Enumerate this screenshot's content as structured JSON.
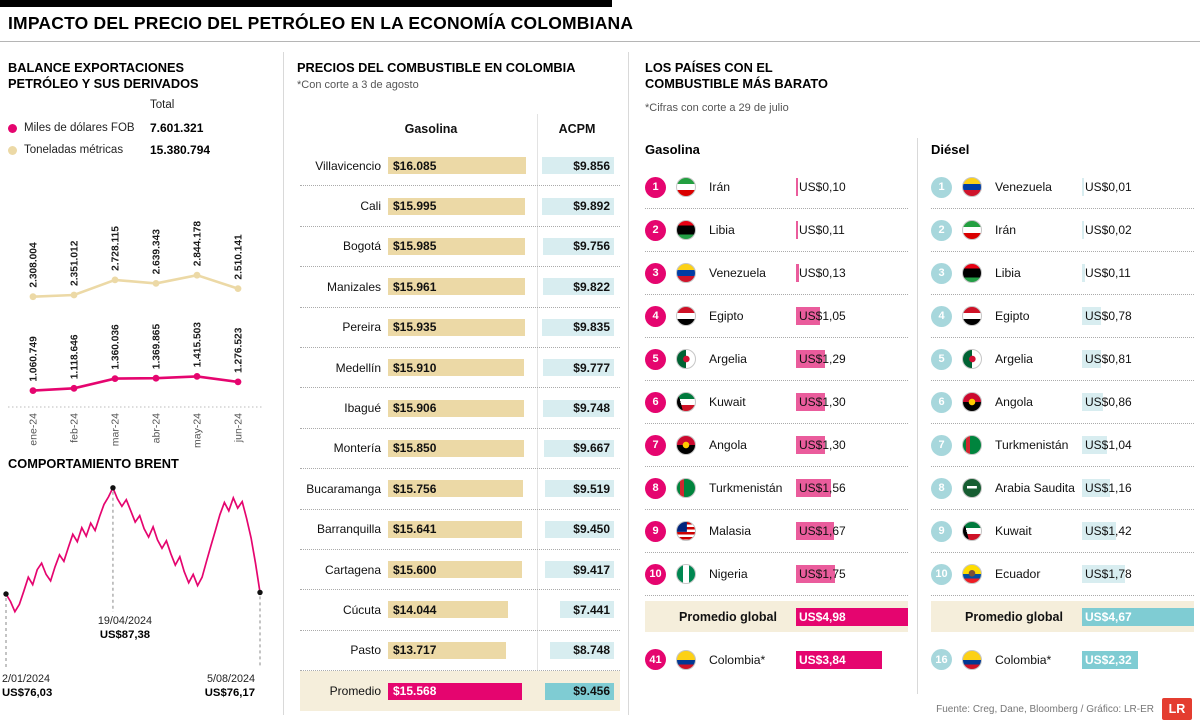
{
  "header": {
    "title": "IMPACTO DEL PRECIO DEL PETRÓLEO EN LA ECONOMÍA COLOMBIANA"
  },
  "sections": {
    "exports": {
      "heading": "BALANCE EXPORTACIONES PETRÓLEO Y SUS DERIVADOS",
      "legend_total": "Total"
    },
    "brent": {
      "heading": "COMPORTAMIENTO BRENT"
    },
    "fuel": {
      "heading": "PRECIOS DEL COMBUSTIBLE EN COLOMBIA",
      "note": "*Con corte a 3 de agosto",
      "col1": "Gasolina",
      "col2": "ACPM"
    },
    "cheapest": {
      "heading": "LOS PAÍSES CON EL COMBUSTIBLE MÁS BARATO",
      "note": "*Cifras con corte a 29 de julio",
      "col1": "Gasolina",
      "col2": "Diésel"
    }
  },
  "footer": {
    "source": "Fuente: Creg, Dane, Bloomberg / Gráfico: LR-ER",
    "logo": "LR"
  },
  "colors": {
    "pink": "#e5056f",
    "pink_bar": "#ea5c9c",
    "beige": "#ecd9a6",
    "beige_row": "#f5eedb",
    "light_blue": "#d8edf0",
    "teal": "#7fccd3",
    "diesel_badge": "#a7d7dc",
    "logo_red": "#e43d30"
  },
  "chart_data": [
    {
      "id": "exports",
      "type": "line",
      "title": "Balance exportaciones petróleo y sus derivados",
      "categories": [
        "ene-24",
        "feb-24",
        "mar-24",
        "abr-24",
        "may-24",
        "jun-24"
      ],
      "series": [
        {
          "name": "Toneladas métricas",
          "color_key": "beige",
          "total_label": "15.380.794",
          "values": [
            2308004,
            2351012,
            2728115,
            2639343,
            2844178,
            2510141
          ],
          "labels": [
            "2.308.004",
            "2.351.012",
            "2.728.115",
            "2.639.343",
            "2.844.178",
            "2.510.141"
          ]
        },
        {
          "name": "Miles de dólares FOB",
          "color_key": "pink",
          "total_label": "7.601.321",
          "values": [
            1060749,
            1118646,
            1360036,
            1369865,
            1415503,
            1276523
          ],
          "labels": [
            "1.060.749",
            "1.118.646",
            "1.360.036",
            "1.369.865",
            "1.415.503",
            "1.276.523"
          ]
        }
      ]
    },
    {
      "id": "brent",
      "type": "line",
      "title": "Comportamiento Brent",
      "ylim": [
        73,
        88
      ],
      "annotations": [
        {
          "date": "2/01/2024",
          "value_label": "US$76,03",
          "value": 76.03,
          "position": "start"
        },
        {
          "date": "19/04/2024",
          "value_label": "US$87,38",
          "value": 87.38,
          "position": "peak"
        },
        {
          "date": "5/08/2024",
          "value_label": "US$76,17",
          "value": 76.17,
          "position": "end"
        }
      ],
      "sampled_values": [
        76.0,
        75.2,
        74.1,
        74.9,
        76.3,
        77.8,
        77.0,
        78.6,
        79.3,
        78.1,
        77.4,
        78.9,
        80.2,
        79.5,
        81.0,
        82.4,
        81.6,
        83.1,
        82.2,
        83.6,
        82.8,
        84.3,
        85.6,
        86.4,
        87.38,
        86.2,
        85.4,
        86.1,
        84.9,
        83.7,
        84.4,
        83.0,
        82.1,
        83.2,
        81.8,
        80.9,
        81.7,
        80.3,
        79.1,
        80.0,
        78.4,
        77.2,
        78.1,
        76.9,
        77.8,
        79.5,
        81.2,
        82.8,
        84.5,
        85.8,
        84.9,
        86.3,
        85.2,
        85.9,
        84.1,
        82.0,
        79.3,
        76.17
      ]
    },
    {
      "id": "fuel_table",
      "type": "bar",
      "title": "Precios del combustible en Colombia",
      "unit": "COP",
      "rows": [
        {
          "city": "Villavicencio",
          "gasolina": 16085,
          "gasolina_label": "$16.085",
          "acpm": 9856,
          "acpm_label": "$9.856"
        },
        {
          "city": "Cali",
          "gasolina": 15995,
          "gasolina_label": "$15.995",
          "acpm": 9892,
          "acpm_label": "$9.892"
        },
        {
          "city": "Bogotá",
          "gasolina": 15985,
          "gasolina_label": "$15.985",
          "acpm": 9756,
          "acpm_label": "$9.756"
        },
        {
          "city": "Manizales",
          "gasolina": 15961,
          "gasolina_label": "$15.961",
          "acpm": 9822,
          "acpm_label": "$9.822"
        },
        {
          "city": "Pereira",
          "gasolina": 15935,
          "gasolina_label": "$15.935",
          "acpm": 9835,
          "acpm_label": "$9.835"
        },
        {
          "city": "Medellín",
          "gasolina": 15910,
          "gasolina_label": "$15.910",
          "acpm": 9777,
          "acpm_label": "$9.777"
        },
        {
          "city": "Ibagué",
          "gasolina": 15906,
          "gasolina_label": "$15.906",
          "acpm": 9748,
          "acpm_label": "$9.748"
        },
        {
          "city": "Montería",
          "gasolina": 15850,
          "gasolina_label": "$15.850",
          "acpm": 9667,
          "acpm_label": "$9.667"
        },
        {
          "city": "Bucaramanga",
          "gasolina": 15756,
          "gasolina_label": "$15.756",
          "acpm": 9519,
          "acpm_label": "$9.519"
        },
        {
          "city": "Barranquilla",
          "gasolina": 15641,
          "gasolina_label": "$15.641",
          "acpm": 9450,
          "acpm_label": "$9.450"
        },
        {
          "city": "Cartagena",
          "gasolina": 15600,
          "gasolina_label": "$15.600",
          "acpm": 9417,
          "acpm_label": "$9.417"
        },
        {
          "city": "Cúcuta",
          "gasolina": 14044,
          "gasolina_label": "$14.044",
          "acpm": 7441,
          "acpm_label": "$7.441"
        },
        {
          "city": "Pasto",
          "gasolina": 13717,
          "gasolina_label": "$13.717",
          "acpm": 8748,
          "acpm_label": "$8.748"
        },
        {
          "city": "Promedio",
          "gasolina": 15568,
          "gasolina_label": "$15.568",
          "acpm": 9456,
          "acpm_label": "$9.456",
          "highlight": true
        }
      ]
    },
    {
      "id": "cheapest_gasolina",
      "type": "bar",
      "title": "Los países con el combustible más barato — Gasolina",
      "unit": "USD",
      "rows": [
        {
          "rank": "1",
          "country": "Irán",
          "flag": "iran",
          "price": 0.1,
          "price_label": "US$0,10"
        },
        {
          "rank": "2",
          "country": "Libia",
          "flag": "libia",
          "price": 0.11,
          "price_label": "US$0,11"
        },
        {
          "rank": "3",
          "country": "Venezuela",
          "flag": "venezuela",
          "price": 0.13,
          "price_label": "US$0,13"
        },
        {
          "rank": "4",
          "country": "Egipto",
          "flag": "egipto",
          "price": 1.05,
          "price_label": "US$1,05"
        },
        {
          "rank": "5",
          "country": "Argelia",
          "flag": "argelia",
          "price": 1.29,
          "price_label": "US$1,29"
        },
        {
          "rank": "6",
          "country": "Kuwait",
          "flag": "kuwait",
          "price": 1.3,
          "price_label": "US$1,30"
        },
        {
          "rank": "7",
          "country": "Angola",
          "flag": "angola",
          "price": 1.3,
          "price_label": "US$1,30"
        },
        {
          "rank": "8",
          "country": "Turkmenistán",
          "flag": "turkmenistan",
          "price": 1.56,
          "price_label": "US$1,56"
        },
        {
          "rank": "9",
          "country": "Malasia",
          "flag": "malasia",
          "price": 1.67,
          "price_label": "US$1,67"
        },
        {
          "rank": "10",
          "country": "Nigeria",
          "flag": "nigeria",
          "price": 1.75,
          "price_label": "US$1,75"
        }
      ],
      "average": {
        "label": "Promedio global",
        "price": 4.98,
        "price_label": "US$4,98"
      },
      "colombia": {
        "rank": "41",
        "country": "Colombia*",
        "flag": "colombia",
        "price": 3.84,
        "price_label": "US$3,84"
      }
    },
    {
      "id": "cheapest_diesel",
      "type": "bar",
      "title": "Los países con el combustible más barato — Diésel",
      "unit": "USD",
      "rows": [
        {
          "rank": "1",
          "country": "Venezuela",
          "flag": "venezuela",
          "price": 0.01,
          "price_label": "US$0,01"
        },
        {
          "rank": "2",
          "country": "Irán",
          "flag": "iran",
          "price": 0.02,
          "price_label": "US$0,02"
        },
        {
          "rank": "3",
          "country": "Libia",
          "flag": "libia",
          "price": 0.11,
          "price_label": "US$0,11"
        },
        {
          "rank": "4",
          "country": "Egipto",
          "flag": "egipto",
          "price": 0.78,
          "price_label": "US$0,78"
        },
        {
          "rank": "5",
          "country": "Argelia",
          "flag": "argelia",
          "price": 0.81,
          "price_label": "US$0,81"
        },
        {
          "rank": "6",
          "country": "Angola",
          "flag": "angola",
          "price": 0.86,
          "price_label": "US$0,86"
        },
        {
          "rank": "7",
          "country": "Turkmenistán",
          "flag": "turkmenistan",
          "price": 1.04,
          "price_label": "US$1,04"
        },
        {
          "rank": "8",
          "country": "Arabia Saudita",
          "flag": "arabia",
          "price": 1.16,
          "price_label": "US$1,16"
        },
        {
          "rank": "9",
          "country": "Kuwait",
          "flag": "kuwait",
          "price": 1.42,
          "price_label": "US$1,42"
        },
        {
          "rank": "10",
          "country": "Ecuador",
          "flag": "ecuador",
          "price": 1.78,
          "price_label": "US$1,78"
        }
      ],
      "average": {
        "label": "Promedio global",
        "price": 4.67,
        "price_label": "US$4,67"
      },
      "colombia": {
        "rank": "16",
        "country": "Colombia*",
        "flag": "colombia",
        "price": 2.32,
        "price_label": "US$2,32"
      }
    }
  ]
}
